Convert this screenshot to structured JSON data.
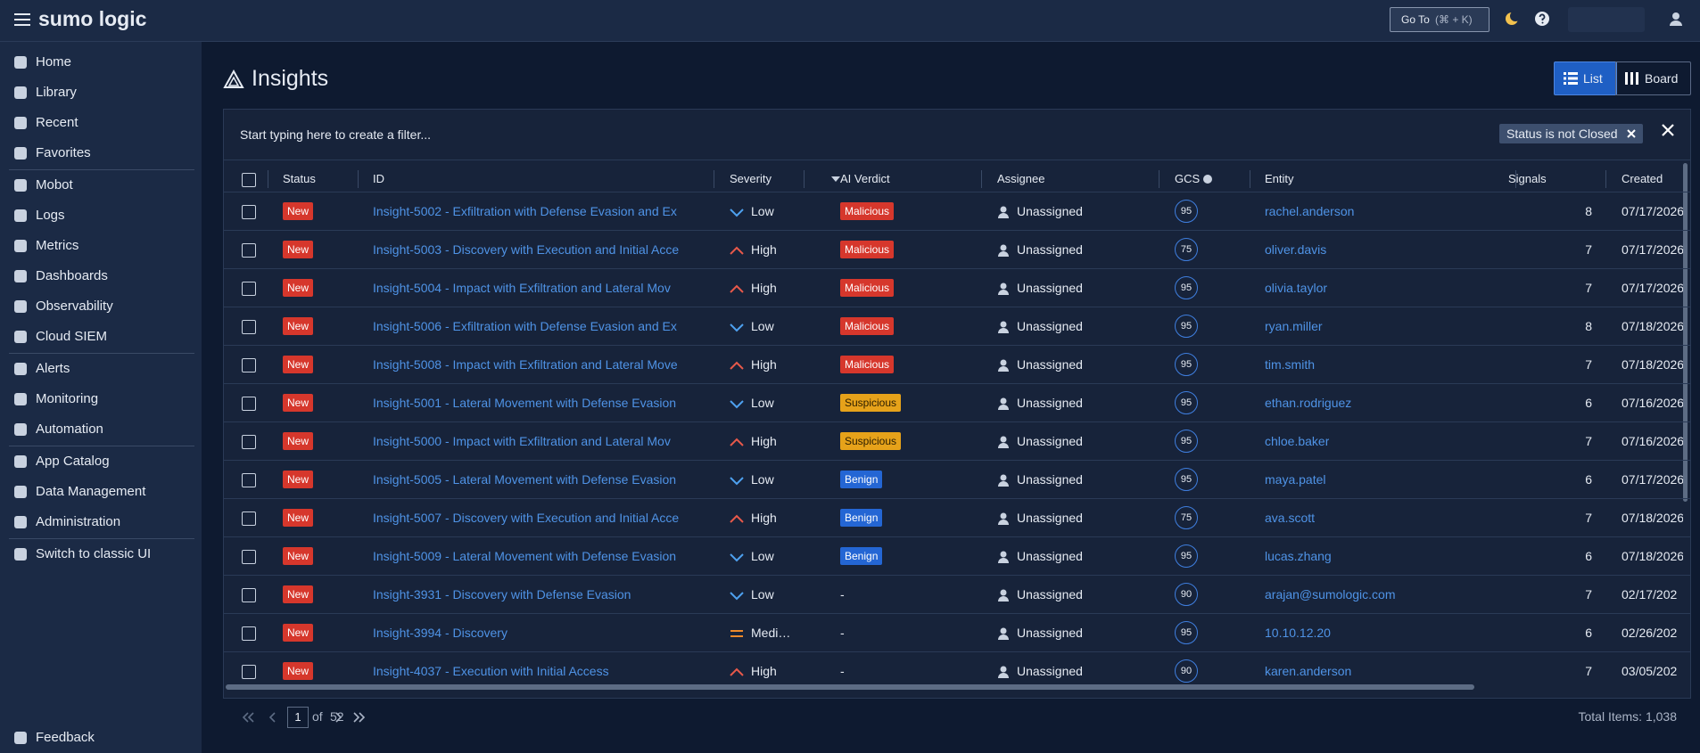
{
  "header": {
    "logo": "sumo logic",
    "goto": "Go To",
    "shortcut": "(⌘ + K)"
  },
  "sidebar": {
    "groups": [
      [
        "Home",
        "Library",
        "Recent",
        "Favorites"
      ],
      [
        "Mobot",
        "Logs",
        "Metrics",
        "Dashboards",
        "Observability",
        "Cloud SIEM"
      ],
      [
        "Alerts",
        "Monitoring",
        "Automation"
      ],
      [
        "App Catalog",
        "Data Management",
        "Administration"
      ],
      [
        "Switch to classic UI"
      ]
    ],
    "footer": "Feedback"
  },
  "page": {
    "title": "Insights",
    "views": [
      "List",
      "Board"
    ]
  },
  "filter": {
    "placeholder": "Start typing here to create a filter...",
    "chip": "Status is not Closed"
  },
  "table": {
    "columns": [
      "Status",
      "ID",
      "Severity",
      "AI Verdict",
      "Assignee",
      "GCS",
      "Entity",
      "Signals",
      "Created"
    ],
    "verdict_colors": {
      "Malicious": "#d6372c",
      "Suspicious": "#e6a21a",
      "Benign": "#2466d4"
    },
    "severity_styles": {
      "Low": {
        "shape": "down",
        "color": "#4ea1f0"
      },
      "High": {
        "shape": "up",
        "color": "#e8594a"
      },
      "Medium": {
        "shape": "bars",
        "color": "#ef8a2a"
      }
    },
    "rows": [
      [
        "New",
        "Insight-5002 - Exfiltration with Defense Evasion and Ex",
        "Low",
        "Malicious",
        "Unassigned",
        "95",
        "rachel.anderson",
        "8",
        "07/17/2026"
      ],
      [
        "New",
        "Insight-5003 - Discovery with Execution and Initial Acce",
        "High",
        "Malicious",
        "Unassigned",
        "75",
        "oliver.davis",
        "7",
        "07/17/2026"
      ],
      [
        "New",
        "Insight-5004 - Impact with Exfiltration and Lateral Mov",
        "High",
        "Malicious",
        "Unassigned",
        "95",
        "olivia.taylor",
        "7",
        "07/17/2026"
      ],
      [
        "New",
        "Insight-5006 - Exfiltration with Defense Evasion and Ex",
        "Low",
        "Malicious",
        "Unassigned",
        "95",
        "ryan.miller",
        "8",
        "07/18/2026"
      ],
      [
        "New",
        "Insight-5008 - Impact with Exfiltration and Lateral Move",
        "High",
        "Malicious",
        "Unassigned",
        "95",
        "tim.smith",
        "7",
        "07/18/2026"
      ],
      [
        "New",
        "Insight-5001 - Lateral Movement with Defense Evasion",
        "Low",
        "Suspicious",
        "Unassigned",
        "95",
        "ethan.rodriguez",
        "6",
        "07/16/2026"
      ],
      [
        "New",
        "Insight-5000 - Impact with Exfiltration and Lateral Mov",
        "High",
        "Suspicious",
        "Unassigned",
        "95",
        "chloe.baker",
        "7",
        "07/16/2026"
      ],
      [
        "New",
        "Insight-5005 - Lateral Movement with Defense Evasion",
        "Low",
        "Benign",
        "Unassigned",
        "95",
        "maya.patel",
        "6",
        "07/17/2026"
      ],
      [
        "New",
        "Insight-5007 - Discovery with Execution and Initial Acce",
        "High",
        "Benign",
        "Unassigned",
        "75",
        "ava.scott",
        "7",
        "07/18/2026"
      ],
      [
        "New",
        "Insight-5009 - Lateral Movement with Defense Evasion",
        "Low",
        "Benign",
        "Unassigned",
        "95",
        "lucas.zhang",
        "6",
        "07/18/2026"
      ],
      [
        "New",
        "Insight-3931 - Discovery with Defense Evasion",
        "Low",
        "-",
        "Unassigned",
        "90",
        "arajan@sumologic.com",
        "7",
        "02/17/202"
      ],
      [
        "New",
        "Insight-3994 - Discovery",
        "Medium",
        "-",
        "Unassigned",
        "95",
        "10.10.12.20",
        "6",
        "02/26/202"
      ],
      [
        "New",
        "Insight-4037 - Execution with Initial Access",
        "High",
        "-",
        "Unassigned",
        "90",
        "karen.anderson",
        "7",
        "03/05/202"
      ]
    ]
  },
  "pagination": {
    "page": "1",
    "of": "of",
    "pages": "52",
    "total": "Total Items: 1,038"
  }
}
